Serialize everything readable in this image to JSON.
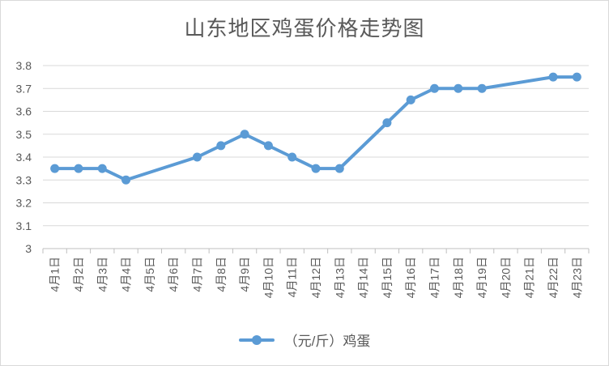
{
  "chart_data": {
    "type": "line",
    "title": "山东地区鸡蛋价格走势图",
    "categories": [
      "4月1日",
      "4月2日",
      "4月3日",
      "4月4日",
      "4月5日",
      "4月6日",
      "4月7日",
      "4月8日",
      "4月9日",
      "4月10日",
      "4月11日",
      "4月12日",
      "4月13日",
      "4月14日",
      "4月15日",
      "4月16日",
      "4月17日",
      "4月18日",
      "4月19日",
      "4月20日",
      "4月21日",
      "4月22日",
      "4月23日"
    ],
    "series": [
      {
        "name": "（元/斤）鸡蛋",
        "values": [
          3.35,
          3.35,
          3.35,
          3.3,
          null,
          null,
          3.4,
          3.45,
          3.5,
          3.45,
          3.4,
          3.35,
          3.35,
          null,
          3.55,
          3.65,
          3.7,
          3.7,
          3.7,
          null,
          null,
          3.75,
          3.75
        ]
      }
    ],
    "yticks": [
      "3",
      "3.1",
      "3.2",
      "3.3",
      "3.4",
      "3.5",
      "3.6",
      "3.7",
      "3.8"
    ],
    "ylim": [
      3,
      3.8
    ],
    "grid": true,
    "legend": "bottom",
    "colors": {
      "series": "#5b9bd5",
      "grid": "#d9d9d9",
      "axis": "#bfbfbf",
      "text": "#595959"
    }
  }
}
